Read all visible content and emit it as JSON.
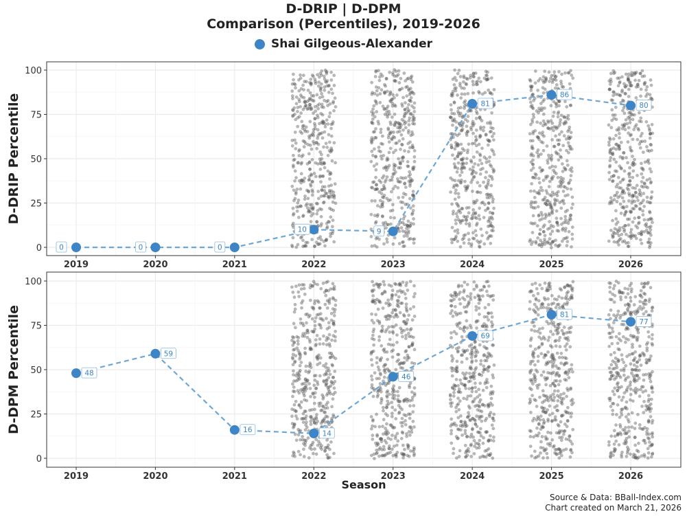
{
  "chart_data": {
    "type": "scatter",
    "title_line1": "D-DRIP | D-DPM",
    "title_line2": "Comparison (Percentiles), 2019-2026",
    "legend": {
      "label": "Shai Gilgeous-Alexander",
      "position": "top-center"
    },
    "xlabel": "Season",
    "categories": [
      "2019",
      "2020",
      "2021",
      "2022",
      "2023",
      "2024",
      "2025",
      "2026"
    ],
    "background_seasons": [
      "2022",
      "2023",
      "2024",
      "2025",
      "2026"
    ],
    "grid": true,
    "panels": [
      {
        "ylabel": "D-DRIP Percentile",
        "ylim": [
          0,
          100
        ],
        "yticks": [
          0,
          25,
          50,
          75,
          100
        ],
        "series": [
          {
            "name": "Shai Gilgeous-Alexander",
            "values": [
              0,
              0,
              0,
              10,
              9,
              81,
              86,
              80
            ]
          }
        ]
      },
      {
        "ylabel": "D-DPM Percentile",
        "ylim": [
          0,
          100
        ],
        "yticks": [
          0,
          25,
          50,
          75,
          100
        ],
        "series": [
          {
            "name": "Shai Gilgeous-Alexander",
            "values": [
              48,
              59,
              16,
              14,
              46,
              69,
              81,
              77
            ]
          }
        ]
      }
    ]
  },
  "colors": {
    "highlight": "#3d85c6",
    "line": "#6aa6d6",
    "background_points": "#555555",
    "grid": "#ebebeb",
    "panel_border": "#333333"
  },
  "footer": {
    "line1": "Source & Data: BBall-Index.com",
    "line2": "Chart created on March 21, 2026"
  }
}
